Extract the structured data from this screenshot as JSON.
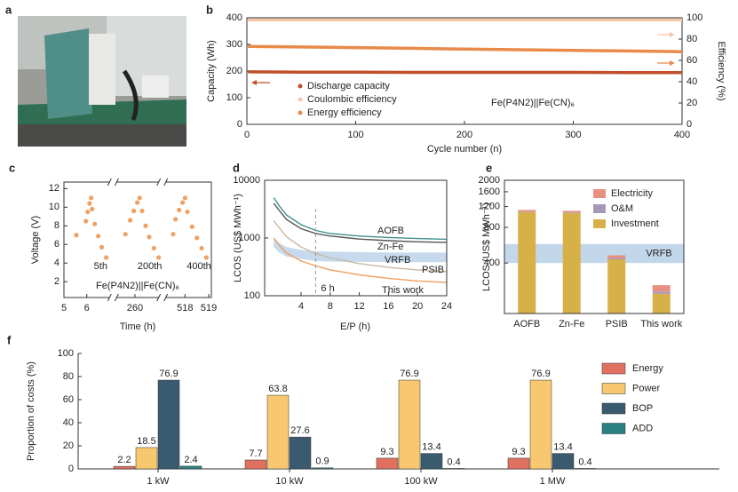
{
  "panel_a": {
    "panel": "a"
  },
  "chart_data": [
    {
      "panel": "b",
      "type": "line",
      "x_label": "Cycle number (n)",
      "y_label": "Capacity (Wh)",
      "y2_label": "Efficiency (%)",
      "xlim": [
        0,
        400
      ],
      "xticks": [
        0,
        100,
        200,
        300,
        400
      ],
      "ylim": [
        0,
        400
      ],
      "yticks": [
        0,
        100,
        200,
        300,
        400
      ],
      "y2lim": [
        0,
        100
      ],
      "y2ticks": [
        0,
        20,
        40,
        60,
        80,
        100
      ],
      "x": [
        1,
        50,
        100,
        150,
        200,
        250,
        300,
        350,
        400
      ],
      "series": [
        {
          "name": "Discharge capacity",
          "color": "#c0502a",
          "values": [
            197,
            196,
            196,
            195,
            195,
            195,
            195,
            194,
            194
          ]
        },
        {
          "name": "Coulombic efficiency",
          "color": "#f6c8a8",
          "axis": "y2",
          "values": [
            98,
            98,
            98,
            98,
            98,
            98,
            98,
            98,
            98
          ]
        },
        {
          "name": "Energy efficiency",
          "color": "#e88a4a",
          "axis": "y2",
          "values": [
            73.2,
            72.6,
            72.0,
            71.3,
            70.6,
            70.0,
            69.4,
            68.8,
            68.2
          ]
        }
      ],
      "annotation": "Fe(P4N2)||Fe(CN)₆"
    },
    {
      "panel": "c",
      "type": "segmented_scatter",
      "x_label": "Time (h)",
      "y_label": "Voltage (V)",
      "color": "#f0a060",
      "ylim": [
        0.3,
        12.7
      ],
      "yticks": [
        2,
        4,
        6,
        8,
        10,
        12
      ],
      "annotation": "Fe(P4N2)||Fe(CN)₆",
      "segments": [
        {
          "label": "5th",
          "xlim": [
            5,
            7.15
          ],
          "xticks": [
            5,
            6
          ],
          "x": [
            5.54,
            5.96,
            6.04,
            6.12,
            6.19,
            6.23,
            6.35,
            6.5,
            6.65,
            6.85
          ],
          "values": [
            7.0,
            8.5,
            9.5,
            10.4,
            11.0,
            9.8,
            8.2,
            6.9,
            5.7,
            4.6
          ]
        },
        {
          "label": "200th",
          "xlim": [
            259.08,
            261.15
          ],
          "xticks": [
            260
          ],
          "x": [
            259.6,
            259.8,
            259.95,
            260.1,
            260.2,
            260.3,
            260.45,
            260.6,
            260.8,
            261.0
          ],
          "values": [
            7.1,
            8.6,
            9.6,
            10.5,
            11.0,
            9.6,
            8.0,
            6.8,
            5.6,
            4.6
          ]
        },
        {
          "label": "400th",
          "xlim": [
            517.04,
            519.11
          ],
          "xticks": [
            518,
            519
          ],
          "x": [
            517.5,
            517.6,
            517.75,
            517.9,
            518.0,
            518.1,
            518.3,
            518.5,
            518.7,
            518.9
          ],
          "values": [
            7.1,
            8.7,
            9.7,
            10.5,
            11.0,
            9.5,
            7.9,
            6.7,
            5.6,
            4.6
          ]
        }
      ]
    },
    {
      "panel": "d",
      "type": "line",
      "log_y": true,
      "x_label": "E/P (h)",
      "y_label": "LCOS (US$ MWh⁻¹)",
      "xlim": [
        -1,
        24
      ],
      "xticks": [
        4,
        8,
        12,
        16,
        20,
        24
      ],
      "ylim": [
        100,
        10000
      ],
      "yticks": [
        100,
        1000,
        10000
      ],
      "x": [
        0.25,
        1,
        2,
        4,
        6,
        8,
        12,
        16,
        20,
        24
      ],
      "series": [
        {
          "name": "AOFB",
          "color": "#3f8f8f",
          "values": [
            5000,
            3600,
            2500,
            1700,
            1350,
            1200,
            1080,
            1020,
            980,
            950
          ]
        },
        {
          "name": "Zn-Fe",
          "color": "#555555",
          "values": [
            4000,
            3000,
            2100,
            1450,
            1200,
            1080,
            960,
            900,
            860,
            840
          ]
        },
        {
          "name": "VRFB",
          "color": "#b8d0e8",
          "label_color": "#3a8fd0",
          "values": [
            700,
            560,
            480,
            430,
            400,
            390,
            385,
            380,
            380,
            380
          ],
          "upper": [
            1000,
            820,
            700,
            620,
            590,
            580,
            570,
            560,
            560,
            560
          ]
        },
        {
          "name": "PSIB",
          "color": "#c8b8a0",
          "values": [
            2000,
            1500,
            1050,
            700,
            540,
            450,
            360,
            310,
            280,
            260
          ]
        },
        {
          "name": "This work",
          "color": "#f0a060",
          "values": [
            1000,
            750,
            550,
            400,
            330,
            280,
            230,
            200,
            180,
            170
          ]
        }
      ],
      "marker": {
        "x": 6,
        "label": "6 h"
      }
    },
    {
      "panel": "e",
      "type": "stacked_bar",
      "log_y": true,
      "y_label": "LCOS (US$ MWh⁻¹)",
      "ylim": [
        150,
        2000
      ],
      "yticks": [
        400,
        800,
        1200,
        1600,
        2000
      ],
      "categories": [
        "AOFB",
        "Zn-Fe",
        "PSIB",
        "This work"
      ],
      "category_colors": [
        "#3f8f8f",
        "#4f8a8a",
        "#b0a090",
        "#f0a060"
      ],
      "series": [
        {
          "name": "Investment",
          "color": "#d8b048",
          "values": [
            1080,
            1060,
            430,
            220
          ]
        },
        {
          "name": "O&M",
          "color": "#a898b8",
          "values": [
            15,
            15,
            10,
            10
          ]
        },
        {
          "name": "Electricity",
          "color": "#e89080",
          "values": [
            30,
            30,
            25,
            30
          ]
        }
      ],
      "band": {
        "label": "VRFB",
        "range": [
          400,
          580
        ],
        "color": "#b8d0e8",
        "label_color": "#3a8fd0"
      }
    },
    {
      "panel": "f",
      "type": "bar",
      "y_label": "Proportion of costs (%)",
      "ylim": [
        0,
        100
      ],
      "yticks": [
        0,
        20,
        40,
        60,
        80,
        100
      ],
      "categories": [
        "1 kW",
        "10 kW",
        "100 kW",
        "1 MW"
      ],
      "series": [
        {
          "name": "Energy",
          "color": "#e07060",
          "values": [
            2.2,
            7.7,
            9.3,
            9.3
          ]
        },
        {
          "name": "Power",
          "color": "#f8c870",
          "values": [
            18.5,
            63.8,
            76.9,
            76.9
          ]
        },
        {
          "name": "BOP",
          "color": "#3a5a70",
          "values": [
            76.9,
            27.6,
            13.4,
            13.4
          ]
        },
        {
          "name": "ADD",
          "color": "#2a8080",
          "values": [
            2.4,
            0.9,
            0.4,
            0.4
          ]
        }
      ]
    }
  ]
}
